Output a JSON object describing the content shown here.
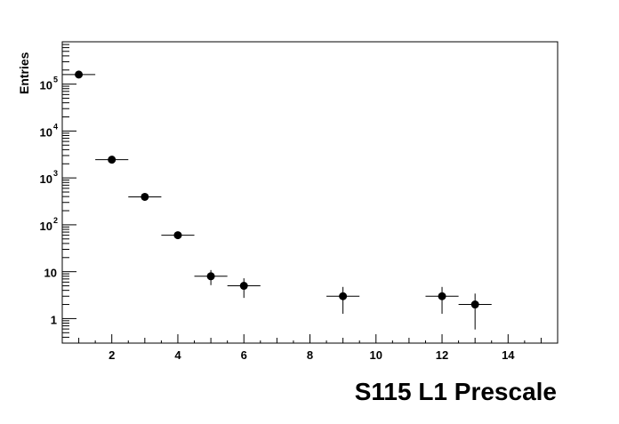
{
  "chart_data": {
    "type": "scatter",
    "title": "S115 L1 Prescale",
    "xlabel": "",
    "ylabel": "Entries",
    "xlim": [
      0.5,
      15.5
    ],
    "ylim": [
      0.3,
      800000
    ],
    "y_scale": "log",
    "grid": false,
    "x_ticks": [
      "2",
      "4",
      "6",
      "8",
      "10",
      "12",
      "14"
    ],
    "y_ticks": [
      {
        "base": "10",
        "exp": "5"
      },
      {
        "base": "10",
        "exp": "4"
      },
      {
        "base": "10",
        "exp": "3"
      },
      {
        "base": "10",
        "exp": "2"
      },
      {
        "base": "10",
        "exp": ""
      },
      {
        "base": "1",
        "exp": ""
      }
    ],
    "x_error": 0.5,
    "points": [
      {
        "x": 1,
        "y": 160000
      },
      {
        "x": 2,
        "y": 2450
      },
      {
        "x": 3,
        "y": 394
      },
      {
        "x": 4,
        "y": 60
      },
      {
        "x": 5,
        "y": 8
      },
      {
        "x": 6,
        "y": 5
      },
      {
        "x": 9,
        "y": 3
      },
      {
        "x": 12,
        "y": 3
      },
      {
        "x": 13,
        "y": 2
      }
    ],
    "marker_color": "#000000"
  }
}
